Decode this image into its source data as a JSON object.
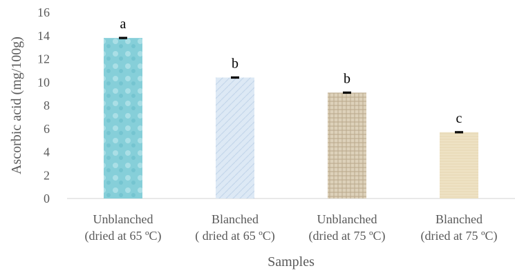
{
  "chart_data": {
    "type": "bar",
    "title": "",
    "xlabel": "Samples",
    "ylabel": "Ascorbic acid (mg/100g)",
    "ylim": [
      0,
      16
    ],
    "yticks": [
      0,
      2,
      4,
      6,
      8,
      10,
      12,
      14,
      16
    ],
    "grid": false,
    "categories": [
      [
        "Unblanched",
        "(dried at 65 ºC)"
      ],
      [
        "Blanched",
        "( dried at 65 ºC)"
      ],
      [
        "Unblanched",
        "(dried at 75 ºC)"
      ],
      [
        "Blanched",
        "(dried at 75 ºC)"
      ]
    ],
    "values": [
      13.8,
      10.4,
      9.1,
      5.7
    ],
    "error": [
      0.05,
      0.05,
      0.05,
      0.05
    ],
    "significance_letters": [
      "a",
      "b",
      "b",
      "c"
    ],
    "bar_colors": [
      "#8fd3dc",
      "#dbe7f4",
      "#d9ccb4",
      "#ece0c0"
    ]
  }
}
